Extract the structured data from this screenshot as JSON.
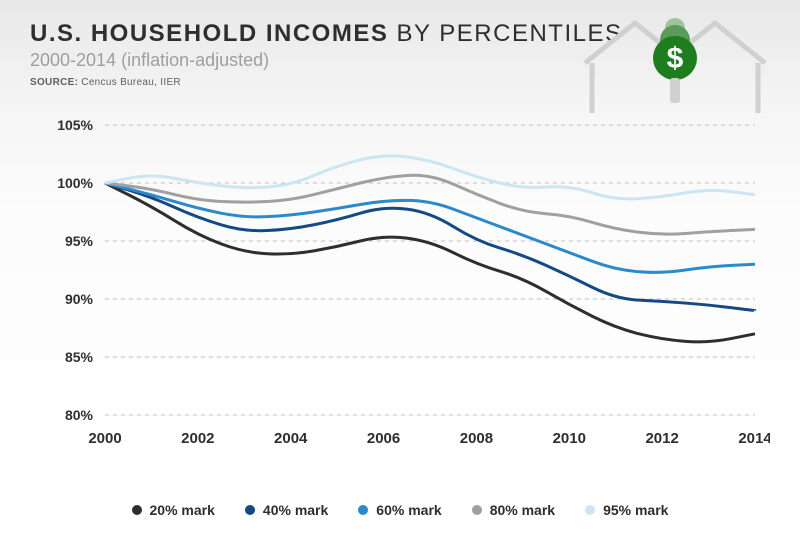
{
  "header": {
    "title_bold": "U.S. HOUSEHOLD INCOMES",
    "title_light": " BY PERCENTILES",
    "subtitle": "2000-2014 (inflation-adjusted)",
    "source_label": "SOURCE:",
    "source_text": " Cencus Bureau, IIER"
  },
  "chart": {
    "type": "line",
    "ylim": [
      80,
      105
    ],
    "ytick_step": 5,
    "yticks": [
      "105%",
      "100%",
      "95%",
      "90%",
      "85%",
      "80%"
    ],
    "xticks": [
      "2000",
      "2002",
      "2004",
      "2006",
      "2008",
      "2010",
      "2012",
      "2014"
    ],
    "grid_color": "#c0c0c0",
    "background_color": "#ffffff",
    "line_width": 3,
    "series": [
      {
        "name": "20% mark",
        "color": "#2e2e2e",
        "years": [
          2000,
          2001,
          2002,
          2003,
          2004,
          2005,
          2006,
          2007,
          2008,
          2009,
          2010,
          2011,
          2012,
          2013,
          2014
        ],
        "values": [
          100,
          98.0,
          95.5,
          94.0,
          93.8,
          94.5,
          95.5,
          95.0,
          93.0,
          91.8,
          89.5,
          87.5,
          86.5,
          86.2,
          87.0
        ]
      },
      {
        "name": "40% mark",
        "color": "#134a84",
        "years": [
          2000,
          2001,
          2002,
          2003,
          2004,
          2005,
          2006,
          2007,
          2008,
          2009,
          2010,
          2011,
          2012,
          2013,
          2014
        ],
        "values": [
          100,
          98.8,
          97.0,
          95.8,
          96.0,
          96.8,
          98.0,
          97.5,
          95.0,
          93.8,
          92.0,
          90.0,
          89.8,
          89.5,
          89.0
        ]
      },
      {
        "name": "60% mark",
        "color": "#2a8acb",
        "years": [
          2000,
          2001,
          2002,
          2003,
          2004,
          2005,
          2006,
          2007,
          2008,
          2009,
          2010,
          2011,
          2012,
          2013,
          2014
        ],
        "values": [
          100,
          99.0,
          97.8,
          97.0,
          97.2,
          97.8,
          98.5,
          98.5,
          97.0,
          95.5,
          94.0,
          92.5,
          92.2,
          92.8,
          93.0
        ]
      },
      {
        "name": "80% mark",
        "color": "#a0a0a0",
        "years": [
          2000,
          2001,
          2002,
          2003,
          2004,
          2005,
          2006,
          2007,
          2008,
          2009,
          2010,
          2011,
          2012,
          2013,
          2014
        ],
        "values": [
          100,
          99.5,
          98.5,
          98.3,
          98.5,
          99.5,
          100.5,
          100.8,
          99.0,
          97.5,
          97.2,
          96.0,
          95.5,
          95.8,
          96.0
        ]
      },
      {
        "name": "95% mark",
        "color": "#cce5f2",
        "years": [
          2000,
          2001,
          2002,
          2003,
          2004,
          2005,
          2006,
          2007,
          2008,
          2009,
          2010,
          2011,
          2012,
          2013,
          2014
        ],
        "values": [
          100,
          100.8,
          100.0,
          99.5,
          99.8,
          101.5,
          102.5,
          102.0,
          100.5,
          99.5,
          99.8,
          98.5,
          98.8,
          99.5,
          99.0
        ]
      }
    ]
  },
  "legend": {
    "items": [
      {
        "label": "20% mark",
        "color": "#2e2e2e"
      },
      {
        "label": "40% mark",
        "color": "#134a84"
      },
      {
        "label": "60% mark",
        "color": "#2a8acb"
      },
      {
        "label": "80% mark",
        "color": "#a0a0a0"
      },
      {
        "label": "95% mark",
        "color": "#cce5f2"
      }
    ]
  }
}
